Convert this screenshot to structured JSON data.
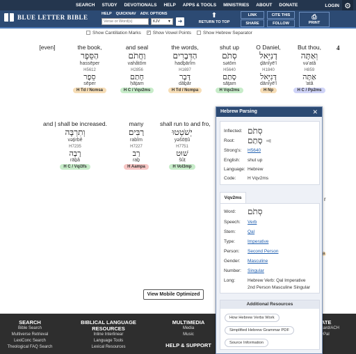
{
  "topnav": {
    "items": [
      "SEARCH",
      "STUDY",
      "DEVOTIONALS",
      "HELP",
      "APPS & TOOLS",
      "MINISTRIES",
      "ABOUT",
      "DONATE"
    ],
    "login": "LOGIN"
  },
  "header": {
    "logo_text": "BLUE LETTER BIBLE",
    "search_tabs": [
      "HELP",
      "QUICKNAV",
      "ADV. OPTIONS"
    ],
    "search_placeholder": "Verse or Word(s)",
    "version": "KJV",
    "return_to_top": "RETURN TO TOP",
    "buttons": {
      "link": "LINK",
      "share": "SHARE",
      "cite": "CITE THIS",
      "follow": "FOLLOW",
      "print": "PRINT"
    }
  },
  "options": {
    "cantillation": "Show Cantillation Marks",
    "vowels": "Show Vowel Points",
    "separator": "Show Hebrew Separator"
  },
  "verse_number": "4",
  "row1": [
    {
      "en": "[even]",
      "he1": "",
      "tr1": "",
      "strongs": "",
      "he2": "",
      "tr2": "",
      "code": "",
      "color": ""
    },
    {
      "en": "the book,",
      "he1": "הַסֵּפֶר",
      "tr1": "hassēper",
      "strongs": "H5612",
      "he2": "סֵפֶר",
      "tr2": "sēper",
      "code": "H Td / Ncmsa",
      "color": "orange"
    },
    {
      "en": "and seal",
      "he1": "וַחֲתֹם",
      "tr1": "vahătōm",
      "strongs": "H2856",
      "he2": "חָתַם",
      "tr2": "ḥāṯam",
      "code": "H C / Vqv2ms",
      "color": "green"
    },
    {
      "en": "the words,",
      "he1": "הַדְּבָרִים",
      "tr1": "hadḇārîm",
      "strongs": "H1697",
      "he2": "דָּבָר",
      "tr2": "dāḇār",
      "code": "H Td / Ncmpa",
      "color": "orange"
    },
    {
      "en": "shut up",
      "he1": "סְתֹם",
      "tr1": "sətōm",
      "strongs": "H5640",
      "he2": "סָתַם",
      "tr2": "sāṯam",
      "code": "H Vqv2ms",
      "color": "green"
    },
    {
      "en": "O Daniel,",
      "he1": "דָנִיֵּאל",
      "tr1": "ḏānîyē'l",
      "strongs": "H1840",
      "he2": "דָּנִיֵּאל",
      "tr2": "dānîyē'l",
      "code": "H Np",
      "color": "orange"
    },
    {
      "en": "But thou,",
      "he1": "וְאַתָּה",
      "tr1": "və'atâ",
      "strongs": "H859",
      "he2": "אַתָּה",
      "tr2": "'atâ",
      "code": "H C / Pp2ms",
      "color": "purple"
    }
  ],
  "row2": [
    {
      "en": "and | shall be increased.",
      "he1": "וְתִרְבֶּה",
      "tr1": "vəṯirbê",
      "strongs": "H7235",
      "he2": "רָבָה",
      "tr2": "rāḇâ",
      "code": "H C / Vqi3fs",
      "color": "green"
    },
    {
      "en": "many",
      "he1": "רַבִּים",
      "tr1": "rabîm",
      "strongs": "H7227",
      "he2": "רַב",
      "tr2": "raḇ",
      "code": "H Aampa",
      "color": "pink"
    },
    {
      "en": "shall run to and fro,",
      "he1": "יְשֹׁטְטוּ",
      "tr1": "yəšōṭṭû",
      "strongs": "H7751",
      "he2": "שׁוּט",
      "tr2": "šûṭ",
      "code": "H Vol3mp",
      "color": "green"
    }
  ],
  "popup": {
    "title": "Hebrew Parsing",
    "inflected_label": "Inflected:",
    "inflected": "סְתֹם",
    "root_label": "Root:",
    "root": "סָתַם",
    "strongs_label": "Strong's:",
    "strongs": "H5640",
    "english_label": "English:",
    "english": "shut up",
    "language_label": "Language:",
    "language": "Hebrew",
    "code_label": "Code:",
    "code": "H  Vqv2ms",
    "tab": "Vqv2ms",
    "word_label": "Word:",
    "word": "סְתֹם",
    "speech_label": "Speech:",
    "speech": "Verb",
    "stem_label": "Stem:",
    "stem": "Qal",
    "type_label": "Type:",
    "type": "Imperative",
    "person_label": "Person:",
    "person": "Second Person",
    "gender_label": "Gender:",
    "gender": "Masculine",
    "number_label": "Number:",
    "number": "Singular",
    "long_label": "Long:",
    "long1": "Hebrew Verb: Qal Imperative",
    "long2": "2nd Person Masculine Singular",
    "resources_title": "Additional Resources",
    "resources": [
      "How Hebrew Verbs Work",
      "Simplified Hebrew Grammar PDF",
      "Source Information"
    ]
  },
  "partials": {
    "r": "r",
    "a": "a"
  },
  "mobile_button": "View Mobile Optimized",
  "footer": {
    "search": {
      "title": "SEARCH",
      "links": [
        "Bible Search",
        "Multiverse Retrieval",
        "LexiConc Search",
        "Theological FAQ Search"
      ]
    },
    "bible_lang": {
      "title": "BIBLICAL LANGUAGE",
      "title2": "RESOURCES",
      "links": [
        "Inline Interlinear",
        "Language Tools",
        "Lexical Resources"
      ]
    },
    "multimedia": {
      "title": "MULTIMEDIA",
      "links": [
        "Media",
        "Music"
      ]
    },
    "help": {
      "title": "HELP & SUPPORT"
    },
    "donate": {
      "title": "ATE",
      "links": [
        "card/ACH",
        "yPal"
      ]
    }
  }
}
